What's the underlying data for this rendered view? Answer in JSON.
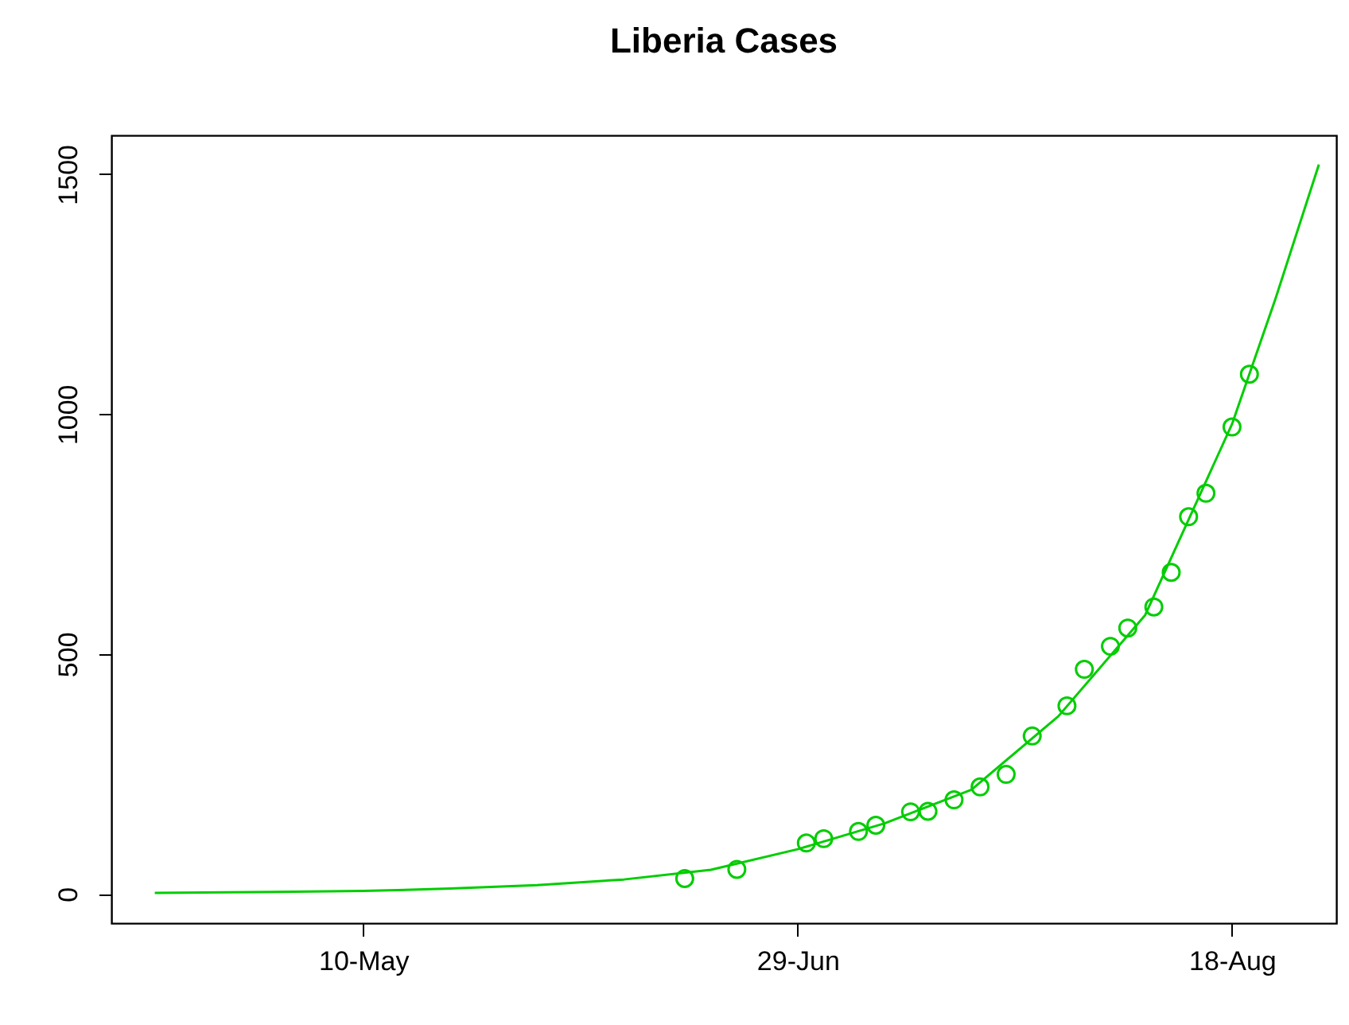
{
  "chart_data": {
    "type": "scatter",
    "title": "Liberia Cases",
    "marker": "circle",
    "grid": false,
    "xlim": [
      "--04-11",
      "--08-30"
    ],
    "xticks": [
      {
        "value": "--05-10",
        "label": "10-May"
      },
      {
        "value": "--06-29",
        "label": "29-Jun"
      },
      {
        "value": "--08-18",
        "label": "18-Aug"
      }
    ],
    "ylim": [
      -61,
      1581
    ],
    "yticks": [
      0,
      500,
      1000,
      1500
    ],
    "series": [
      {
        "color": "#00cd00",
        "x": [
          "--06-16",
          "--06-22",
          "--06-30",
          "--07-02",
          "--07-06",
          "--07-08",
          "--07-12",
          "--07-14",
          "--07-17",
          "--07-20",
          "--07-23",
          "--07-26",
          "--07-30",
          "--08-01",
          "--08-04",
          "--08-06",
          "--08-09",
          "--08-11",
          "--08-13",
          "--08-15",
          "--08-18",
          "--08-20"
        ],
        "values": [
          32,
          51,
          106,
          115,
          130,
          143,
          171,
          172,
          196,
          223,
          249,
          329,
          392,
          468,
          516,
          554,
          598,
          670,
          786,
          835,
          973,
          1083
        ]
      },
      {
        "type": "line",
        "marker": "none",
        "color": "#00cd00",
        "x": [
          "--04-16",
          "--04-30",
          "--05-10",
          "--05-20",
          "--05-30",
          "--06-09",
          "--06-19",
          "--06-29",
          "--07-09",
          "--07-19",
          "--07-29",
          "--08-08",
          "--08-18",
          "--08-23",
          "--08-28"
        ],
        "values": [
          2,
          4,
          6,
          11,
          18,
          30,
          50,
          93,
          147,
          217,
          370,
          581,
          979,
          1240,
          1520
        ]
      }
    ]
  }
}
